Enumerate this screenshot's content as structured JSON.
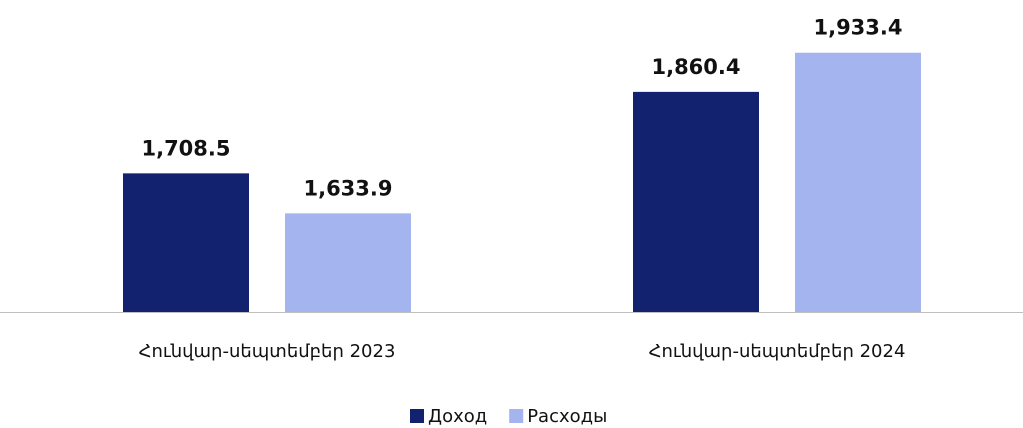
{
  "chart_data": {
    "type": "bar",
    "categories": [
      "Հունվար-սեպտեմբեր 2023",
      "Հունվար-սեպտեմբեր 2024"
    ],
    "series": [
      {
        "name": "Доход",
        "color": "#13226e",
        "values": [
          1708.5,
          1860.4
        ],
        "value_labels": [
          "1,708.5",
          "1,860.4"
        ]
      },
      {
        "name": "Расходы",
        "color": "#a3b4ee",
        "values": [
          1633.9,
          1933.4
        ],
        "value_labels": [
          "1,633.9",
          "1,933.4"
        ]
      }
    ],
    "ylim": [
      1450,
      2000
    ],
    "grid": false,
    "legend": "bottom"
  }
}
